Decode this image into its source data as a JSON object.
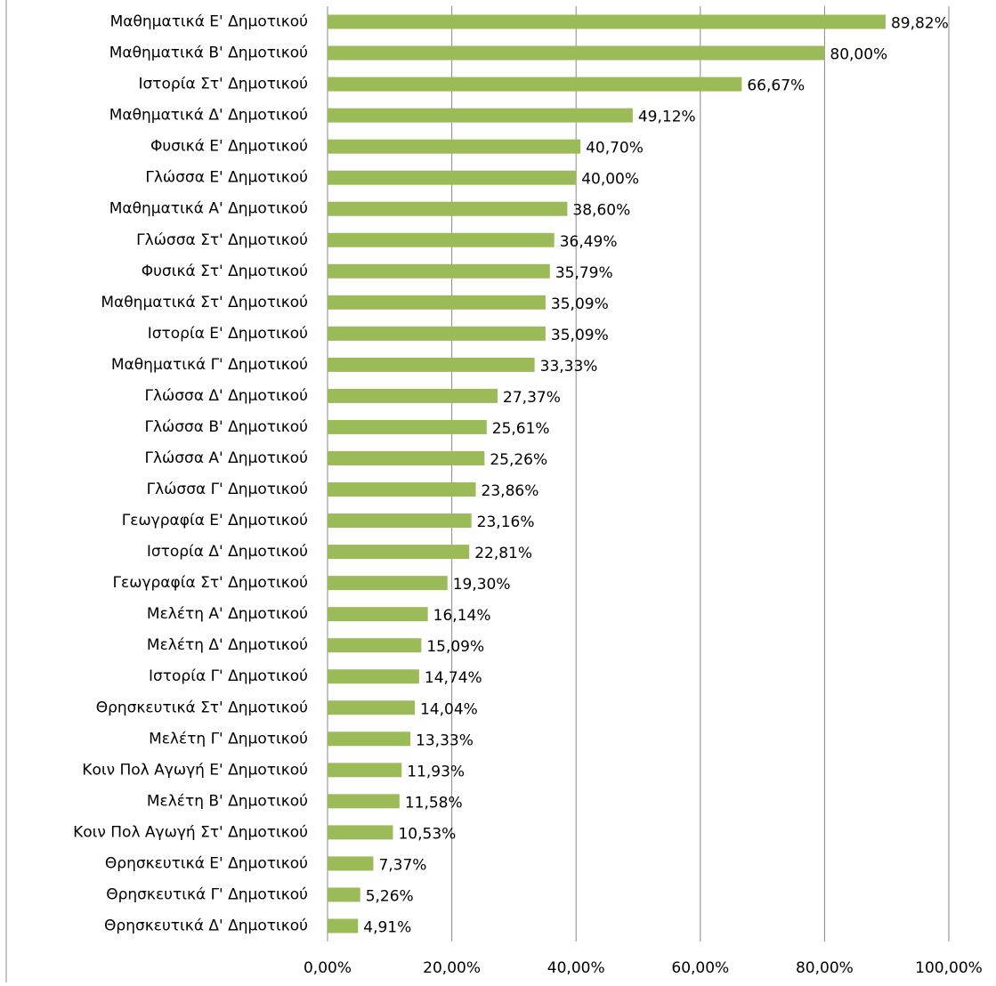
{
  "chart_data": {
    "type": "bar",
    "orientation": "horizontal",
    "categories": [
      "Μαθηματικά Ε' Δημοτικού",
      "Μαθηματικά Β' Δημοτικού",
      "Ιστορία Στ' Δημοτικού",
      "Μαθηματικά Δ' Δημοτικού",
      "Φυσικά Ε' Δημοτικού",
      "Γλώσσα Ε' Δημοτικού",
      "Μαθηματικά Α' Δημοτικού",
      "Γλώσσα Στ' Δημοτικού",
      "Φυσικά Στ' Δημοτικού",
      "Μαθηματικά Στ' Δημοτικού",
      "Ιστορία Ε' Δημοτικού",
      "Μαθηματικά Γ' Δημοτικού",
      "Γλώσσα Δ' Δημοτικού",
      "Γλώσσα Β' Δημοτικού",
      "Γλώσσα Α' Δημοτικού",
      "Γλώσσα Γ' Δημοτικού",
      "Γεωγραφία Ε' Δημοτικού",
      "Ιστορία Δ' Δημοτικού",
      "Γεωγραφία Στ' Δημοτικού",
      "Μελέτη Α' Δημοτικού",
      "Μελέτη Δ' Δημοτικού",
      "Ιστορία Γ' Δημοτικού",
      "Θρησκευτικά Στ' Δημοτικού",
      "Μελέτη Γ' Δημοτικού",
      "Κοιν Πολ Αγωγή Ε' Δημοτικού",
      "Μελέτη Β' Δημοτικού",
      "Κοιν Πολ Αγωγή Στ' Δημοτικού",
      "Θρησκευτικά Ε' Δημοτικού",
      "Θρησκευτικά Γ' Δημοτικού",
      "Θρησκευτικά Δ' Δημοτικού"
    ],
    "values": [
      89.82,
      80,
      66.67,
      49.12,
      40.7,
      40,
      38.6,
      36.49,
      35.79,
      35.09,
      35.09,
      33.33,
      27.37,
      25.61,
      25.26,
      23.86,
      23.16,
      22.81,
      19.3,
      16.14,
      15.09,
      14.74,
      14.04,
      13.33,
      11.93,
      11.58,
      10.53,
      7.37,
      5.26,
      4.91
    ],
    "value_labels": [
      "89,82%",
      "80,00%",
      "66,67%",
      "49,12%",
      "40,70%",
      "40,00%",
      "38,60%",
      "36,49%",
      "35,79%",
      "35,09%",
      "35,09%",
      "33,33%",
      "27,37%",
      "25,61%",
      "25,26%",
      "23,86%",
      "23,16%",
      "22,81%",
      "19,30%",
      "16,14%",
      "15,09%",
      "14,74%",
      "14,04%",
      "13,33%",
      "11,93%",
      "11,58%",
      "10,53%",
      "7,37%",
      "5,26%",
      "4,91%"
    ],
    "color": "#9bbb59",
    "xlim": [
      0,
      100
    ],
    "xticks": [
      {
        "value": 0,
        "label": "0,00%"
      },
      {
        "value": 20,
        "label": "20,00%"
      },
      {
        "value": 40,
        "label": "40,00%"
      },
      {
        "value": 60,
        "label": "60,00%"
      },
      {
        "value": 80,
        "label": "80,00%"
      },
      {
        "value": 100,
        "label": "100,00%"
      }
    ],
    "grid": true
  }
}
